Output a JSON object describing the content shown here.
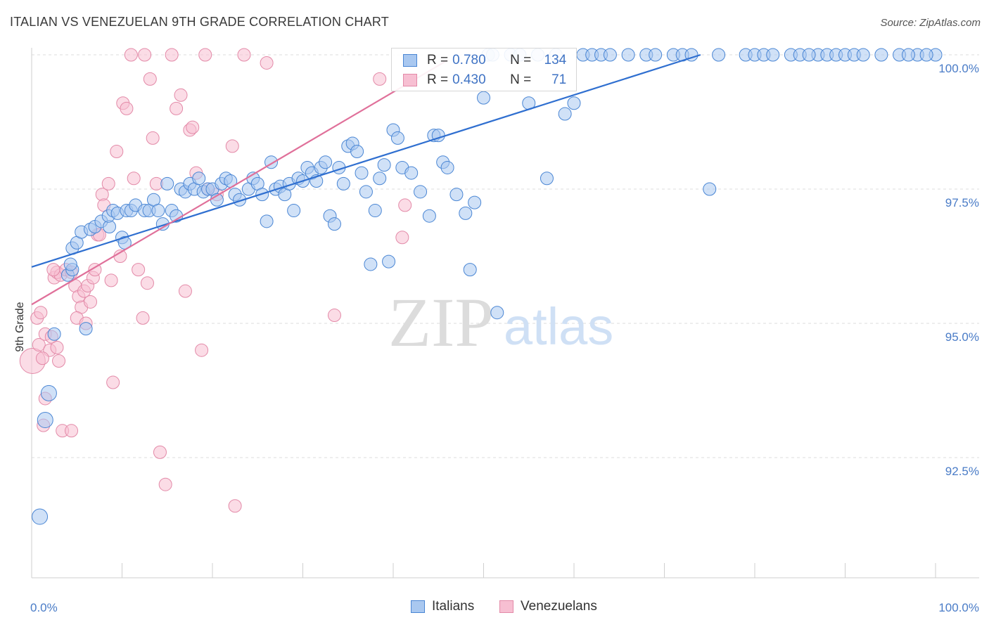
{
  "title": "ITALIAN VS VENEZUELAN 9TH GRADE CORRELATION CHART",
  "source": "Source: ZipAtlas.com",
  "watermark": {
    "zip": "ZIP",
    "atlas": "atlas"
  },
  "legend": {
    "rows": [
      {
        "r_label": "R =",
        "r_value": "0.780",
        "n_label": "N =",
        "n_value": "134"
      },
      {
        "r_label": "R =",
        "r_value": "0.430",
        "n_label": "N =",
        "n_value": "71"
      }
    ]
  },
  "colors": {
    "italians_fill": "#a9c8f0",
    "italians_stroke": "#4a86d4",
    "italians_line": "#2f6fd0",
    "venezuelans_fill": "#f7bfd2",
    "venezuelans_stroke": "#e38aa8",
    "venezuelans_line": "#e0709a",
    "grid": "#dcdcdc",
    "tick_text": "#4a7cc7"
  },
  "chart_data": {
    "type": "scatter",
    "title": "ITALIAN VS VENEZUELAN 9TH GRADE CORRELATION CHART",
    "xlabel": "",
    "ylabel": "9th Grade",
    "x_tick_labels": [
      "0.0%",
      "100.0%"
    ],
    "y_tick_labels": [
      "100.0%",
      "97.5%",
      "95.0%",
      "92.5%"
    ],
    "y_ticks": [
      100.0,
      97.5,
      95.0,
      92.5
    ],
    "xlim": [
      0,
      100
    ],
    "ylim": [
      90.0,
      100.2
    ],
    "grid": true,
    "legend_position": "bottom",
    "series": [
      {
        "name": "Italians",
        "r": 0.78,
        "n": 134,
        "trend": {
          "x": [
            0,
            74
          ],
          "y": [
            96.05,
            100.0
          ]
        },
        "points": [
          [
            0.9,
            91.4
          ],
          [
            1.9,
            93.7
          ],
          [
            1.5,
            93.2
          ],
          [
            2.5,
            94.8
          ],
          [
            6,
            94.9
          ],
          [
            4,
            95.9
          ],
          [
            4.5,
            96.0
          ],
          [
            4.3,
            96.1
          ],
          [
            4.5,
            96.4
          ],
          [
            5,
            96.5
          ],
          [
            5.5,
            96.7
          ],
          [
            6.5,
            96.75
          ],
          [
            7,
            96.8
          ],
          [
            7.7,
            96.9
          ],
          [
            8.6,
            96.8
          ],
          [
            10,
            96.6
          ],
          [
            10.3,
            96.5
          ],
          [
            8.5,
            97.0
          ],
          [
            9,
            97.1
          ],
          [
            9.5,
            97.05
          ],
          [
            10.5,
            97.1
          ],
          [
            11,
            97.1
          ],
          [
            11.5,
            97.2
          ],
          [
            12.5,
            97.1
          ],
          [
            13,
            97.1
          ],
          [
            13.5,
            97.3
          ],
          [
            14,
            97.1
          ],
          [
            14.5,
            96.85
          ],
          [
            15,
            97.6
          ],
          [
            15.5,
            97.1
          ],
          [
            16,
            97.0
          ],
          [
            16.5,
            97.5
          ],
          [
            17,
            97.45
          ],
          [
            17.5,
            97.6
          ],
          [
            18,
            97.5
          ],
          [
            18.5,
            97.7
          ],
          [
            19,
            97.45
          ],
          [
            19.5,
            97.5
          ],
          [
            20,
            97.5
          ],
          [
            20.5,
            97.3
          ],
          [
            21,
            97.6
          ],
          [
            21.5,
            97.7
          ],
          [
            22,
            97.65
          ],
          [
            22.5,
            97.4
          ],
          [
            23,
            97.3
          ],
          [
            24,
            97.5
          ],
          [
            24.5,
            97.7
          ],
          [
            25,
            97.6
          ],
          [
            25.5,
            97.4
          ],
          [
            26,
            96.9
          ],
          [
            26.5,
            98.0
          ],
          [
            27,
            97.5
          ],
          [
            27.5,
            97.55
          ],
          [
            28,
            97.4
          ],
          [
            28.5,
            97.6
          ],
          [
            29,
            97.1
          ],
          [
            29.5,
            97.7
          ],
          [
            30,
            97.65
          ],
          [
            30.5,
            97.9
          ],
          [
            31,
            97.8
          ],
          [
            31.5,
            97.65
          ],
          [
            32,
            97.9
          ],
          [
            32.5,
            98.0
          ],
          [
            33,
            97.0
          ],
          [
            33.5,
            96.85
          ],
          [
            34,
            97.9
          ],
          [
            34.5,
            97.6
          ],
          [
            35,
            98.3
          ],
          [
            35.5,
            98.35
          ],
          [
            36,
            98.2
          ],
          [
            36.5,
            97.8
          ],
          [
            37,
            97.45
          ],
          [
            37.5,
            96.1
          ],
          [
            38,
            97.1
          ],
          [
            38.5,
            97.7
          ],
          [
            39,
            97.95
          ],
          [
            39.5,
            96.15
          ],
          [
            40,
            98.6
          ],
          [
            40.5,
            98.45
          ],
          [
            41,
            97.9
          ],
          [
            42,
            97.8
          ],
          [
            43,
            97.45
          ],
          [
            44,
            97.0
          ],
          [
            44.5,
            98.5
          ],
          [
            45,
            98.5
          ],
          [
            45.5,
            98.0
          ],
          [
            46,
            97.9
          ],
          [
            47,
            97.4
          ],
          [
            48,
            97.05
          ],
          [
            48.5,
            96.0
          ],
          [
            49,
            97.25
          ],
          [
            50,
            99.2
          ],
          [
            50.5,
            100.0
          ],
          [
            51,
            100.0
          ],
          [
            51.5,
            95.2
          ],
          [
            53,
            100.0
          ],
          [
            54,
            100.0
          ],
          [
            55,
            99.1
          ],
          [
            56,
            100.0
          ],
          [
            57,
            97.7
          ],
          [
            58,
            100.0
          ],
          [
            59,
            98.9
          ],
          [
            60,
            99.1
          ],
          [
            61,
            100.0
          ],
          [
            62,
            100.0
          ],
          [
            63,
            100.0
          ],
          [
            64,
            100.0
          ],
          [
            66,
            100.0
          ],
          [
            68,
            100.0
          ],
          [
            69,
            100.0
          ],
          [
            71,
            100.0
          ],
          [
            72,
            100.0
          ],
          [
            73,
            100.0
          ],
          [
            75,
            97.5
          ],
          [
            76,
            100.0
          ],
          [
            79,
            100.0
          ],
          [
            80,
            100.0
          ],
          [
            81,
            100.0
          ],
          [
            82,
            100.0
          ],
          [
            84,
            100.0
          ],
          [
            87,
            100.0
          ],
          [
            88,
            100.0
          ],
          [
            89,
            100.0
          ],
          [
            90,
            100.0
          ],
          [
            91,
            100.0
          ],
          [
            92,
            100.0
          ],
          [
            100,
            100.0
          ],
          [
            98,
            100.0
          ],
          [
            94,
            100.0
          ],
          [
            96,
            100.0
          ],
          [
            97,
            100.0
          ],
          [
            99,
            100.0
          ],
          [
            85,
            100.0
          ],
          [
            86,
            100.0
          ]
        ]
      },
      {
        "name": "Venezuelans",
        "r": 0.43,
        "n": 71,
        "trend": {
          "x": [
            0,
            46
          ],
          "y": [
            95.35,
            99.9
          ]
        },
        "points": [
          [
            0.1,
            94.3
          ],
          [
            0.6,
            95.1
          ],
          [
            1.0,
            95.2
          ],
          [
            0.8,
            94.6
          ],
          [
            1.5,
            94.8
          ],
          [
            2.0,
            94.5
          ],
          [
            2.2,
            94.75
          ],
          [
            2.8,
            94.55
          ],
          [
            3.0,
            94.3
          ],
          [
            1.5,
            93.6
          ],
          [
            1.3,
            93.1
          ],
          [
            3.4,
            93.0
          ],
          [
            4.4,
            93.0
          ],
          [
            2.5,
            95.85
          ],
          [
            2.8,
            95.95
          ],
          [
            3.2,
            95.9
          ],
          [
            3.8,
            96.0
          ],
          [
            4.4,
            95.95
          ],
          [
            4.8,
            95.7
          ],
          [
            5.2,
            95.5
          ],
          [
            5.5,
            95.3
          ],
          [
            5.8,
            95.6
          ],
          [
            6.2,
            95.7
          ],
          [
            6.5,
            95.4
          ],
          [
            5.0,
            95.1
          ],
          [
            6.0,
            95.0
          ],
          [
            6.8,
            95.85
          ],
          [
            7.0,
            96.0
          ],
          [
            7.3,
            96.65
          ],
          [
            7.8,
            97.4
          ],
          [
            8.0,
            97.2
          ],
          [
            8.5,
            97.6
          ],
          [
            8.8,
            95.8
          ],
          [
            9.0,
            93.9
          ],
          [
            9.4,
            98.2
          ],
          [
            9.8,
            96.25
          ],
          [
            10.1,
            99.1
          ],
          [
            10.5,
            99.0
          ],
          [
            11.0,
            100.0
          ],
          [
            11.3,
            97.7
          ],
          [
            11.8,
            96.0
          ],
          [
            12.3,
            95.1
          ],
          [
            12.8,
            95.75
          ],
          [
            13.1,
            99.55
          ],
          [
            13.4,
            98.45
          ],
          [
            13.8,
            97.6
          ],
          [
            14.2,
            92.6
          ],
          [
            14.8,
            92.0
          ],
          [
            15.5,
            100.0
          ],
          [
            16.0,
            99.0
          ],
          [
            16.5,
            99.25
          ],
          [
            17.0,
            95.6
          ],
          [
            17.5,
            98.6
          ],
          [
            17.8,
            98.65
          ],
          [
            18.2,
            97.8
          ],
          [
            18.8,
            94.5
          ],
          [
            19.2,
            100.0
          ],
          [
            19.5,
            97.5
          ],
          [
            20.5,
            97.4
          ],
          [
            22.2,
            98.3
          ],
          [
            22.5,
            91.6
          ],
          [
            23.5,
            100.0
          ],
          [
            26.0,
            99.85
          ],
          [
            33.5,
            95.15
          ],
          [
            38.5,
            99.55
          ],
          [
            41.0,
            96.6
          ],
          [
            41.3,
            97.2
          ],
          [
            1.2,
            94.35
          ],
          [
            2.4,
            96.0
          ],
          [
            12.5,
            100.0
          ],
          [
            7.5,
            96.65
          ]
        ]
      }
    ]
  },
  "bottom_legend": {
    "italians": "Italians",
    "venezuelans": "Venezuelans"
  }
}
